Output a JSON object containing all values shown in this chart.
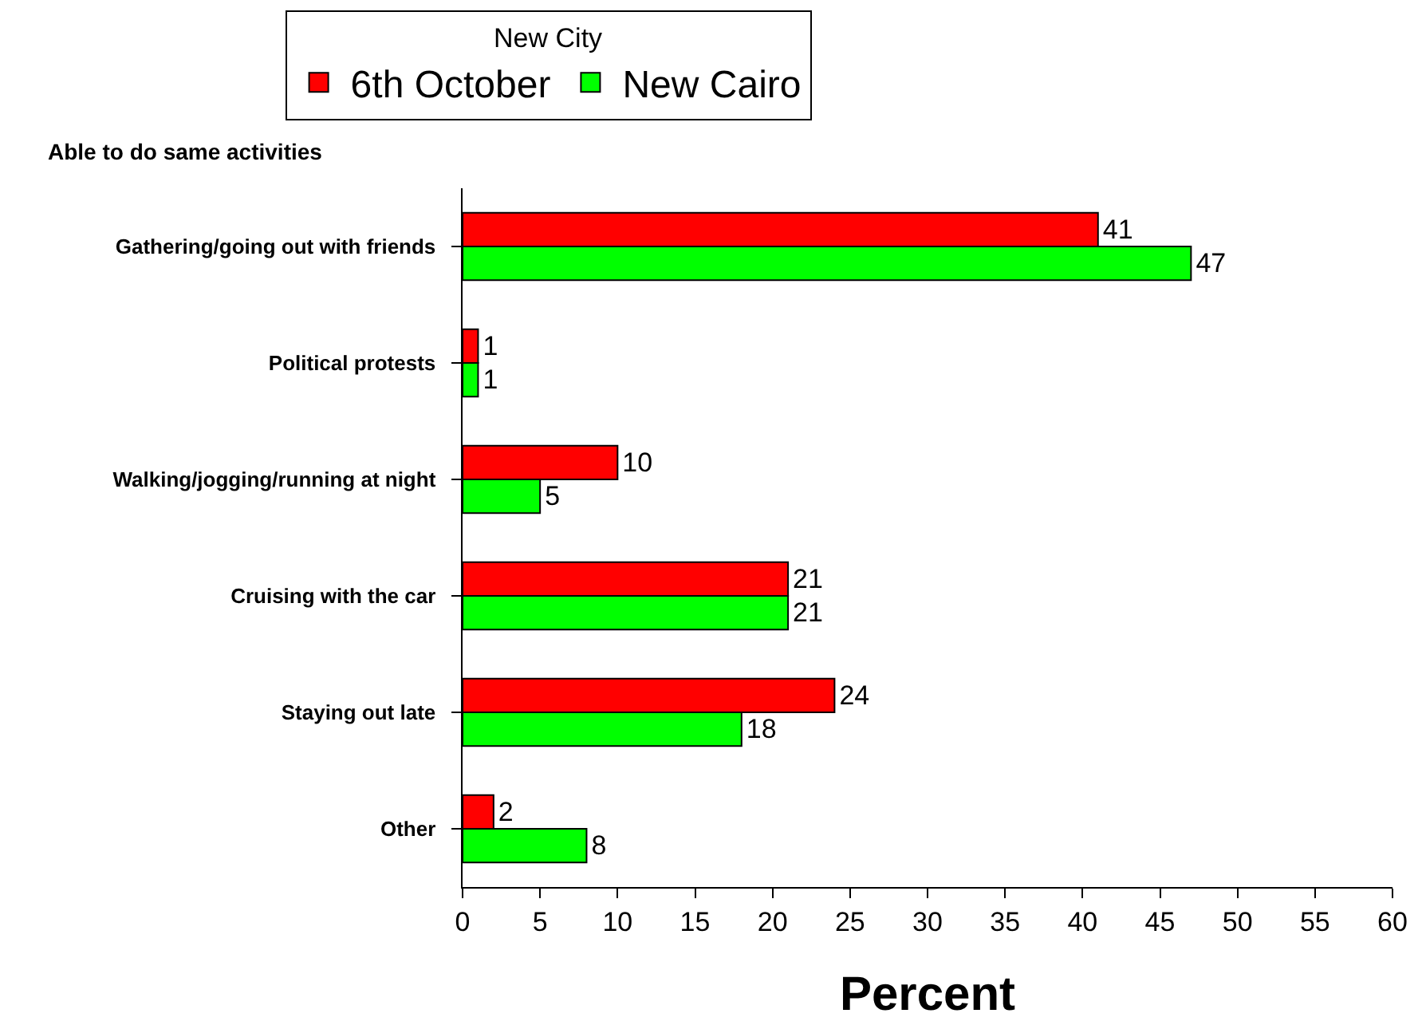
{
  "chart_data": {
    "type": "bar",
    "orientation": "horizontal",
    "ylabel": "Able to do same activities",
    "xlabel": "Percent",
    "legend_title": "New City",
    "categories": [
      "Gathering/going out with friends",
      "Political protests",
      "Walking/jogging/running at night",
      "Cruising with the car",
      "Staying out late",
      "Other"
    ],
    "series": [
      {
        "name": "6th October",
        "color": "#ff0000",
        "values": [
          41,
          1,
          10,
          21,
          24,
          2
        ]
      },
      {
        "name": "New Cairo",
        "color": "#00ff00",
        "values": [
          47,
          1,
          5,
          21,
          18,
          8
        ]
      }
    ],
    "xlim": [
      0,
      60
    ],
    "xticks": [
      0,
      5,
      10,
      15,
      20,
      25,
      30,
      35,
      40,
      45,
      50,
      55,
      60
    ],
    "data_labels": true,
    "legend": "top"
  }
}
